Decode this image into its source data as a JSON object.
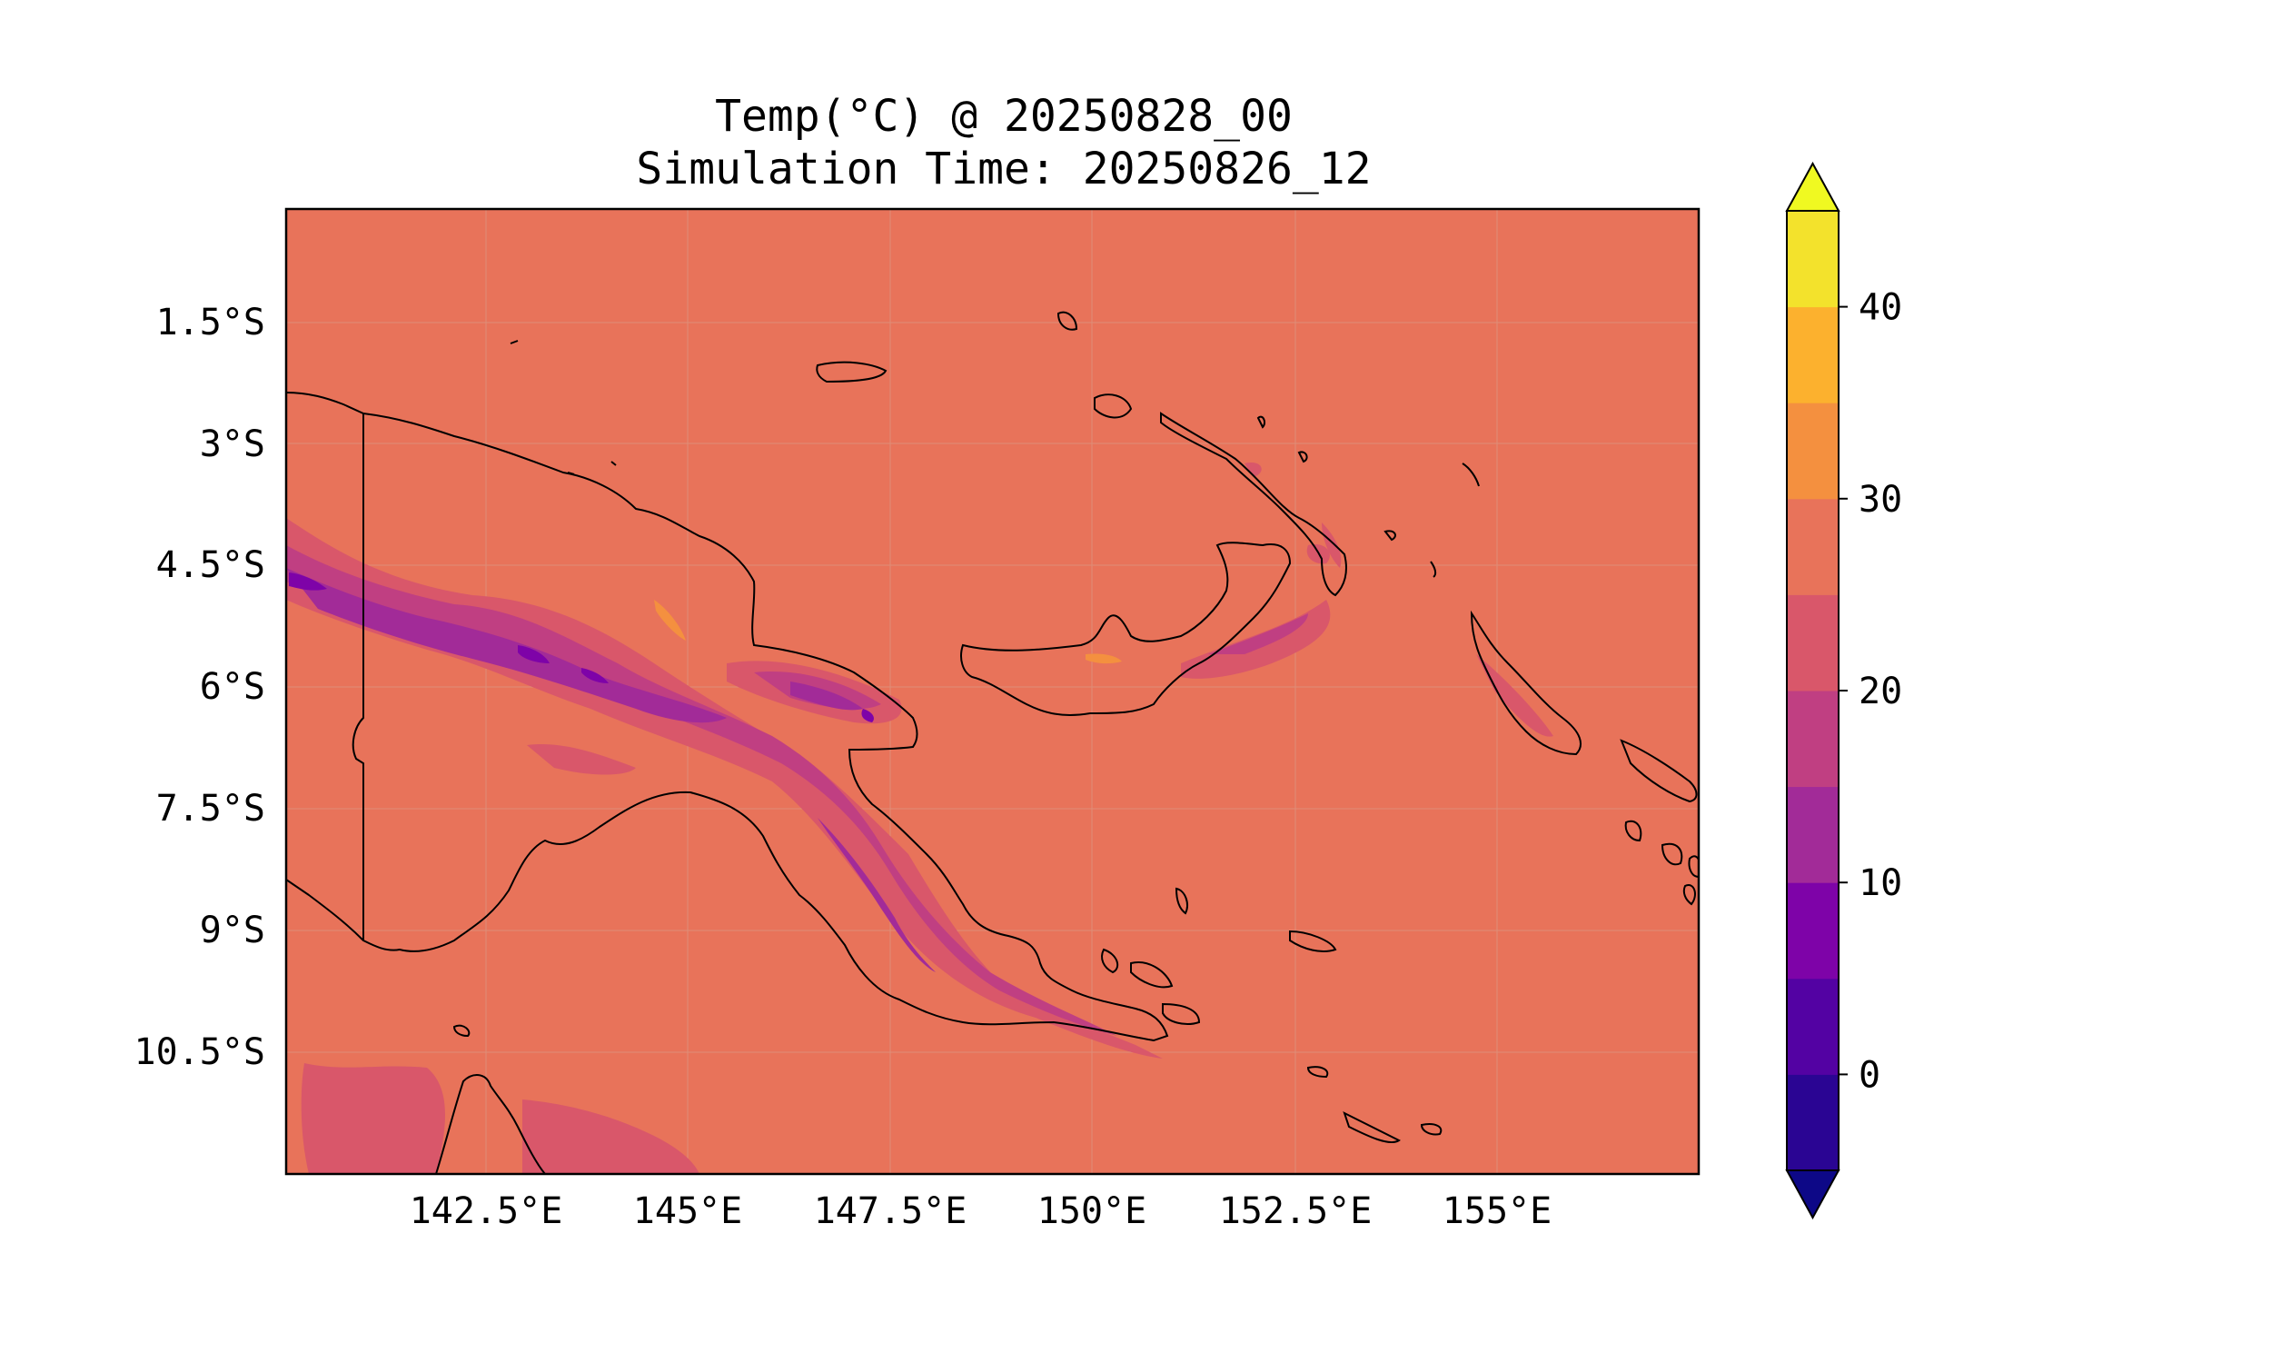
{
  "title": {
    "line1": "Temp(°C) @ 20250828_00",
    "line2": "Simulation Time: 20250826_12"
  },
  "map": {
    "region": "Papua New Guinea",
    "background_color": "#e8735a",
    "colormap": "plasma",
    "x_ticks": [
      "142.5°E",
      "145°E",
      "147.5°E",
      "150°E",
      "152.5°E",
      "155°E"
    ],
    "y_ticks": [
      "1.5°S",
      "3°S",
      "4.5°S",
      "6°S",
      "7.5°S",
      "9°S",
      "10.5°S"
    ],
    "gridlines": true
  },
  "colorbar": {
    "ticks": [
      "40",
      "30",
      "20",
      "10",
      "0"
    ],
    "levels": [
      -5,
      0,
      5,
      10,
      15,
      20,
      25,
      30,
      35,
      40,
      45
    ],
    "extend": "both",
    "colors": [
      "#2a0593",
      "#5302a3",
      "#7e03a8",
      "#a22b98",
      "#c03f82",
      "#d9576a",
      "#e8735a",
      "#f4903f",
      "#fcb12e",
      "#f3e22c"
    ],
    "under_color": "#0d0887",
    "over_color": "#f0f921"
  }
}
